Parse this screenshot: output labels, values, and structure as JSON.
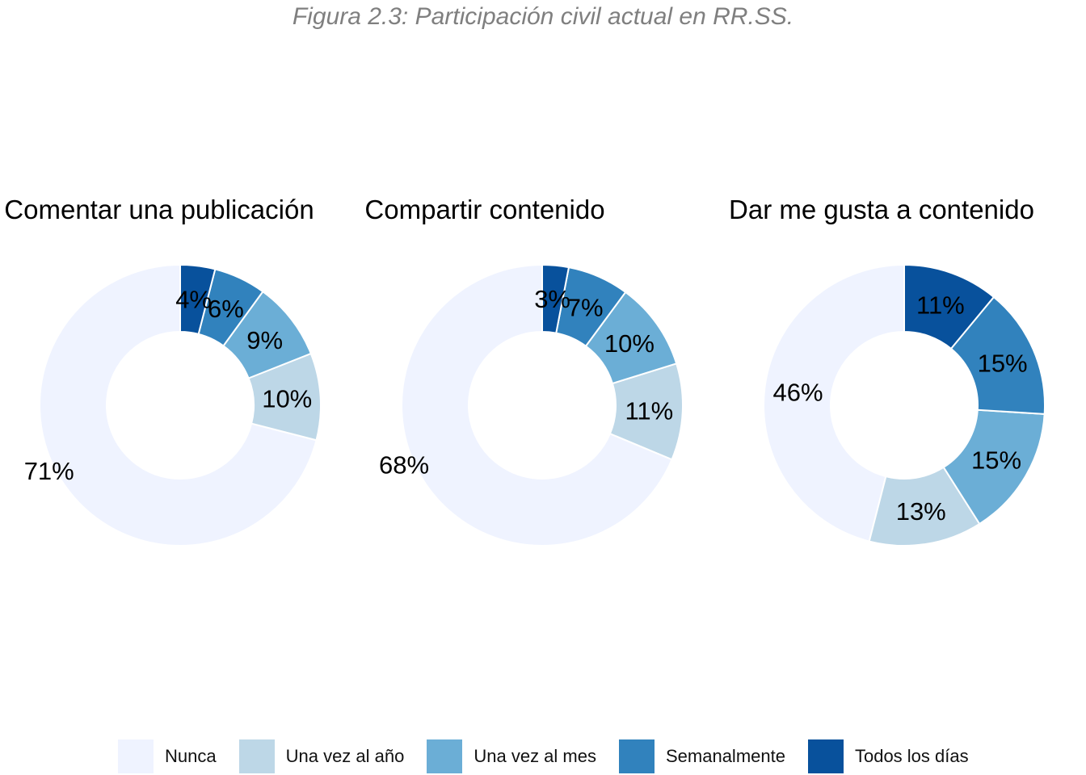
{
  "figure_title": "Figura 2.3: Participación civil actual en RR.SS.",
  "palette": {
    "Nunca": "#eff3ff",
    "Una vez al año": "#bdd7e7",
    "Una vez al mes": "#6baed6",
    "Semanalmente": "#3182bd",
    "Todos los días": "#08519c"
  },
  "legend": [
    "Nunca",
    "Una vez al año",
    "Una vez al mes",
    "Semanalmente",
    "Todos los días"
  ],
  "chart_data": [
    {
      "type": "pie",
      "subtype": "donut",
      "title": "Comentar una publicación",
      "categories": [
        "Nunca",
        "Una vez al año",
        "Una vez al mes",
        "Semanalmente",
        "Todos los días"
      ],
      "values": [
        71,
        10,
        9,
        6,
        4
      ],
      "labels": [
        "71%",
        "10%",
        "9%",
        "6%",
        "4%"
      ],
      "unit": "%"
    },
    {
      "type": "pie",
      "subtype": "donut",
      "title": "Compartir contenido",
      "categories": [
        "Nunca",
        "Una vez al año",
        "Una vez al mes",
        "Semanalmente",
        "Todos los días"
      ],
      "values": [
        68,
        11,
        10,
        7,
        3
      ],
      "labels": [
        "68%",
        "11%",
        "10%",
        "7%",
        "3%"
      ],
      "unit": "%"
    },
    {
      "type": "pie",
      "subtype": "donut",
      "title": "Dar me gusta a contenido",
      "categories": [
        "Nunca",
        "Una vez al año",
        "Una vez al mes",
        "Semanalmente",
        "Todos los días"
      ],
      "values": [
        46,
        13,
        15,
        15,
        11
      ],
      "labels": [
        "46%",
        "13%",
        "15%",
        "15%",
        "11%"
      ],
      "unit": "%"
    }
  ]
}
